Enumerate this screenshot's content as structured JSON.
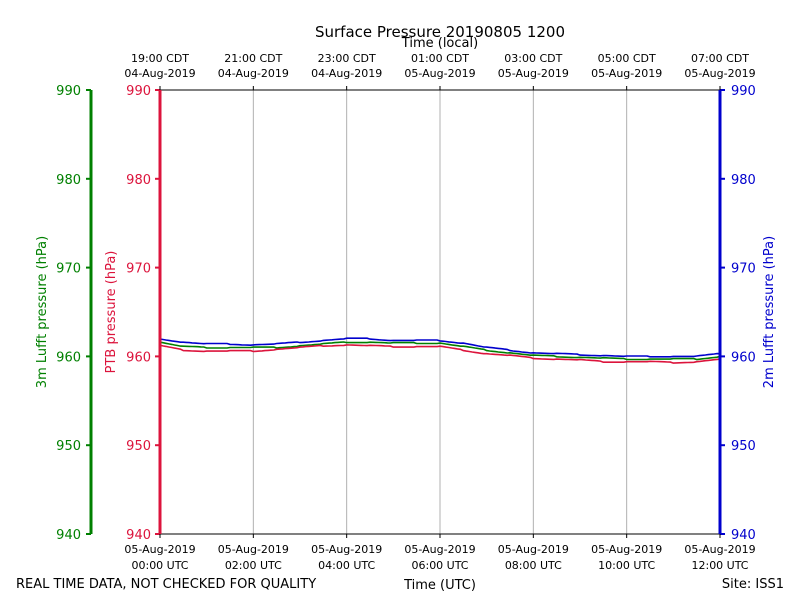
{
  "chart_data": {
    "type": "line",
    "title": "Surface Pressure 20190805 1200",
    "top_xlabel": "Time (local)",
    "xlabel": "Time (UTC)",
    "footer_left": "REAL TIME DATA, NOT CHECKED FOR QUALITY",
    "footer_right": "Site: ISS1",
    "x_range_hours": [
      0,
      12
    ],
    "ylim": [
      940,
      990
    ],
    "y_ticks": [
      940,
      950,
      960,
      970,
      980,
      990
    ],
    "axes": {
      "outer_left": {
        "label": "3m Lufft pressure (hPa)",
        "color": "#008000"
      },
      "inner_left": {
        "label": "PTB pressure (hPa)",
        "color": "#dc143c"
      },
      "right": {
        "label": "2m Lufft pressure (hPa)",
        "color": "#0000cd"
      }
    },
    "bottom_ticks": [
      {
        "hour": 0,
        "line1": "05-Aug-2019",
        "line2": "00:00 UTC"
      },
      {
        "hour": 2,
        "line1": "05-Aug-2019",
        "line2": "02:00 UTC"
      },
      {
        "hour": 4,
        "line1": "05-Aug-2019",
        "line2": "04:00 UTC"
      },
      {
        "hour": 6,
        "line1": "05-Aug-2019",
        "line2": "06:00 UTC"
      },
      {
        "hour": 8,
        "line1": "05-Aug-2019",
        "line2": "08:00 UTC"
      },
      {
        "hour": 10,
        "line1": "05-Aug-2019",
        "line2": "10:00 UTC"
      },
      {
        "hour": 12,
        "line1": "05-Aug-2019",
        "line2": "12:00 UTC"
      }
    ],
    "top_ticks": [
      {
        "hour": 0,
        "line1": "19:00 CDT",
        "line2": "04-Aug-2019"
      },
      {
        "hour": 2,
        "line1": "21:00 CDT",
        "line2": "04-Aug-2019"
      },
      {
        "hour": 4,
        "line1": "23:00 CDT",
        "line2": "04-Aug-2019"
      },
      {
        "hour": 6,
        "line1": "01:00 CDT",
        "line2": "05-Aug-2019"
      },
      {
        "hour": 8,
        "line1": "03:00 CDT",
        "line2": "05-Aug-2019"
      },
      {
        "hour": 10,
        "line1": "05:00 CDT",
        "line2": "05-Aug-2019"
      },
      {
        "hour": 12,
        "line1": "07:00 CDT",
        "line2": "05-Aug-2019"
      }
    ],
    "x_hours": [
      0,
      0.5,
      1,
      1.5,
      2,
      2.5,
      3,
      3.5,
      4,
      4.5,
      5,
      5.5,
      6,
      6.5,
      7,
      7.5,
      8,
      8.5,
      9,
      9.5,
      10,
      10.5,
      11,
      11.5,
      12
    ],
    "series": [
      {
        "name": "2m Lufft pressure",
        "color": "#0000cd",
        "values": [
          962.0,
          961.6,
          961.4,
          961.4,
          961.3,
          961.4,
          961.6,
          961.8,
          962.0,
          962.0,
          961.8,
          961.8,
          961.8,
          961.5,
          961.0,
          960.7,
          960.4,
          960.3,
          960.2,
          960.1,
          960.0,
          960.0,
          960.0,
          960.0,
          960.3
        ]
      },
      {
        "name": "3m Lufft pressure",
        "color": "#008000",
        "values": [
          961.6,
          961.1,
          961.0,
          961.0,
          961.0,
          961.0,
          961.2,
          961.4,
          961.6,
          961.6,
          961.5,
          961.5,
          961.5,
          961.1,
          960.7,
          960.4,
          960.1,
          960.0,
          959.9,
          959.8,
          959.7,
          959.7,
          959.7,
          959.7,
          960.0
        ]
      },
      {
        "name": "PTB pressure",
        "color": "#dc143c",
        "values": [
          961.2,
          960.7,
          960.6,
          960.6,
          960.6,
          960.8,
          961.0,
          961.2,
          961.3,
          961.2,
          961.1,
          961.1,
          961.1,
          960.7,
          960.3,
          960.1,
          959.8,
          959.7,
          959.6,
          959.4,
          959.4,
          959.4,
          959.3,
          959.4,
          959.7
        ]
      }
    ]
  }
}
